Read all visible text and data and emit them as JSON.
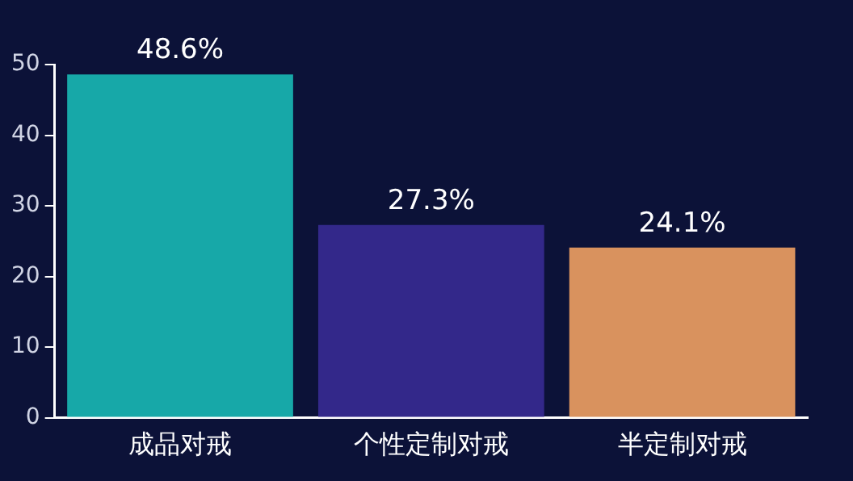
{
  "chart_data": {
    "type": "bar",
    "categories": [
      "成品对戒",
      "个性定制对戒",
      "半定制对戒"
    ],
    "values": [
      48.6,
      27.3,
      24.1
    ],
    "colors": [
      "#17a8a8",
      "#33288a",
      "#d9925e"
    ],
    "value_labels": [
      "48.6%",
      "27.3%",
      "24.1%"
    ],
    "ylim": [
      0,
      50
    ],
    "yticks": [
      0,
      10,
      20,
      30,
      40,
      50
    ],
    "grid": false,
    "legend": false
  }
}
